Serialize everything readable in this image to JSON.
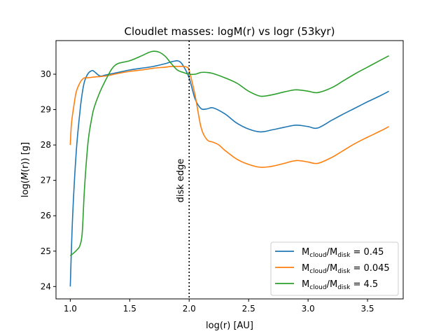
{
  "chart_data": {
    "type": "line",
    "title": "Cloudlet masses: logM(r) vs logr (53kyr)",
    "xlabel": "log(r) [AU]",
    "ylabel": "log(M(r)) [g]",
    "xlim": [
      0.88,
      3.8
    ],
    "ylim": [
      23.65,
      30.95
    ],
    "xticks": [
      1.0,
      1.5,
      2.0,
      2.5,
      3.0,
      3.5
    ],
    "xtick_labels": [
      "1.0",
      "1.5",
      "2.0",
      "2.5",
      "3.0",
      "3.5"
    ],
    "yticks": [
      24,
      25,
      26,
      27,
      28,
      29,
      30
    ],
    "ytick_labels": [
      "24",
      "25",
      "26",
      "27",
      "28",
      "29",
      "30"
    ],
    "grid": false,
    "legend_position": "lower-right",
    "annotation": {
      "text": "disk edge",
      "x": 2.0,
      "style": "dotted vertical line"
    },
    "series": [
      {
        "name": "M_cloud/M_disk = 0.45",
        "legend": {
          "prefix": "M",
          "sub1": "cloud",
          "mid": "/M",
          "sub2": "disk",
          "suffix": " = 0.45"
        },
        "color": "#1f77b4",
        "x": [
          1.0,
          1.02,
          1.05,
          1.08,
          1.1,
          1.12,
          1.15,
          1.18,
          1.2,
          1.25,
          1.3,
          1.4,
          1.5,
          1.6,
          1.7,
          1.8,
          1.85,
          1.9,
          1.93,
          1.96,
          2.0,
          2.05,
          2.1,
          2.15,
          2.2,
          2.3,
          2.4,
          2.5,
          2.6,
          2.7,
          2.8,
          2.9,
          3.0,
          3.08,
          3.2,
          3.3,
          3.4,
          3.5,
          3.6,
          3.68
        ],
        "y": [
          24.0,
          26.0,
          27.8,
          28.9,
          29.45,
          29.8,
          30.02,
          30.1,
          30.08,
          29.95,
          29.98,
          30.05,
          30.12,
          30.17,
          30.22,
          30.3,
          30.35,
          30.38,
          30.33,
          30.18,
          29.9,
          29.3,
          29.03,
          29.02,
          29.05,
          28.88,
          28.62,
          28.45,
          28.37,
          28.43,
          28.5,
          28.56,
          28.52,
          28.48,
          28.7,
          28.88,
          29.05,
          29.22,
          29.38,
          29.52
        ]
      },
      {
        "name": "M_cloud/M_disk = 0.045",
        "legend": {
          "prefix": "M",
          "sub1": "cloud",
          "mid": "/M",
          "sub2": "disk",
          "suffix": " = 0.045"
        },
        "color": "#ff7f0e",
        "x": [
          1.0,
          1.01,
          1.03,
          1.05,
          1.08,
          1.1,
          1.12,
          1.15,
          1.2,
          1.3,
          1.4,
          1.5,
          1.6,
          1.7,
          1.8,
          1.85,
          1.9,
          1.95,
          1.98,
          2.0,
          2.05,
          2.1,
          2.15,
          2.2,
          2.25,
          2.3,
          2.4,
          2.5,
          2.6,
          2.7,
          2.8,
          2.9,
          3.0,
          3.08,
          3.2,
          3.3,
          3.4,
          3.5,
          3.6,
          3.68
        ],
        "y": [
          28.0,
          28.6,
          29.1,
          29.5,
          29.75,
          29.85,
          29.9,
          29.9,
          29.92,
          29.95,
          30.02,
          30.08,
          30.12,
          30.17,
          30.2,
          30.22,
          30.22,
          30.22,
          30.2,
          30.1,
          29.4,
          28.5,
          28.15,
          28.08,
          28.0,
          27.85,
          27.6,
          27.45,
          27.37,
          27.4,
          27.48,
          27.56,
          27.52,
          27.48,
          27.65,
          27.85,
          28.05,
          28.22,
          28.38,
          28.52
        ]
      },
      {
        "name": "M_cloud/M_disk = 4.5",
        "legend": {
          "prefix": "M",
          "sub1": "cloud",
          "mid": "/M",
          "sub2": "disk",
          "suffix": " = 4.5"
        },
        "color": "#2ca02c",
        "x": [
          1.0,
          1.03,
          1.06,
          1.08,
          1.1,
          1.12,
          1.15,
          1.18,
          1.2,
          1.25,
          1.3,
          1.35,
          1.4,
          1.5,
          1.6,
          1.65,
          1.7,
          1.75,
          1.8,
          1.85,
          1.9,
          1.95,
          2.0,
          2.05,
          2.1,
          2.15,
          2.2,
          2.3,
          2.4,
          2.5,
          2.6,
          2.7,
          2.8,
          2.9,
          3.0,
          3.08,
          3.2,
          3.3,
          3.4,
          3.5,
          3.6,
          3.68
        ],
        "y": [
          24.87,
          24.95,
          25.05,
          25.15,
          25.5,
          26.8,
          28.1,
          28.75,
          29.05,
          29.5,
          29.85,
          30.15,
          30.3,
          30.38,
          30.52,
          30.6,
          30.65,
          30.62,
          30.5,
          30.3,
          30.12,
          30.05,
          30.0,
          30.0,
          30.05,
          30.05,
          30.02,
          29.9,
          29.75,
          29.52,
          29.38,
          29.42,
          29.5,
          29.56,
          29.52,
          29.48,
          29.62,
          29.82,
          30.02,
          30.2,
          30.38,
          30.52
        ]
      }
    ]
  }
}
